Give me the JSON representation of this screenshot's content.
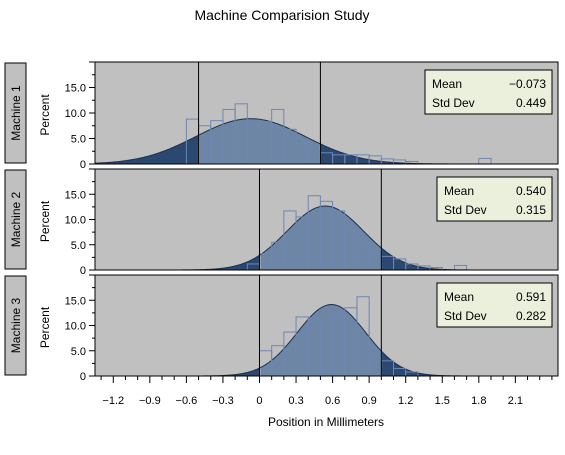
{
  "chart_data": {
    "type": "histogram",
    "title": "Machine Comparision Study",
    "xlabel": "Position in Millimeters",
    "ylabel": "Percent",
    "xlim": [
      -1.35,
      2.45
    ],
    "ylim": [
      0,
      20
    ],
    "x_ticks": [
      -1.2,
      -0.9,
      -0.6,
      -0.3,
      0,
      0.3,
      0.6,
      0.9,
      1.2,
      1.5,
      1.8,
      2.1
    ],
    "x_tick_labels": [
      "−1.2",
      "−0.9",
      "−0.6",
      "−0.3",
      "0",
      "0.3",
      "0.6",
      "0.9",
      "1.2",
      "1.5",
      "1.8",
      "2.1"
    ],
    "y_ticks": [
      0,
      5,
      10,
      15
    ],
    "y_tick_labels": [
      "0",
      "5.0",
      "10.0",
      "15.0"
    ],
    "grid": false,
    "panel_background": "#c0c0c0",
    "curve_inner_color": "#6d86a6",
    "curve_tail_color": "#2b4870",
    "bar_edge_color": "#6f86b2",
    "inset_background": "#eaf0dc",
    "stats_labels": [
      "Mean",
      "Std Dev"
    ],
    "panels": [
      {
        "name": "Machine 1",
        "mean": -0.073,
        "std": 0.449,
        "mean_text": "−0.073",
        "std_text": "0.449",
        "ref_lines": [
          -0.5,
          0.5
        ],
        "bins": [
          {
            "x0": -0.6,
            "x1": -0.5,
            "y": 8.8
          },
          {
            "x0": -0.5,
            "x1": -0.4,
            "y": 7.5
          },
          {
            "x0": -0.4,
            "x1": -0.3,
            "y": 8.5
          },
          {
            "x0": -0.3,
            "x1": -0.2,
            "y": 10.7
          },
          {
            "x0": -0.2,
            "x1": -0.1,
            "y": 11.8
          },
          {
            "x0": -0.1,
            "x1": 0.0,
            "y": 8.6
          },
          {
            "x0": 0.0,
            "x1": 0.1,
            "y": 8.3
          },
          {
            "x0": 0.1,
            "x1": 0.2,
            "y": 10.7
          },
          {
            "x0": 0.2,
            "x1": 0.3,
            "y": 6.8
          },
          {
            "x0": 0.3,
            "x1": 0.4,
            "y": 4.1
          },
          {
            "x0": 0.4,
            "x1": 0.5,
            "y": 2.5
          },
          {
            "x0": 0.5,
            "x1": 0.6,
            "y": 2.2
          },
          {
            "x0": 0.6,
            "x1": 0.7,
            "y": 1.8
          },
          {
            "x0": 0.7,
            "x1": 0.8,
            "y": 1.8
          },
          {
            "x0": 0.8,
            "x1": 0.9,
            "y": 1.8
          },
          {
            "x0": 0.9,
            "x1": 1.0,
            "y": 1.6
          },
          {
            "x0": 1.0,
            "x1": 1.1,
            "y": 1.0
          },
          {
            "x0": 1.1,
            "x1": 1.2,
            "y": 0.8
          },
          {
            "x0": 1.2,
            "x1": 1.3,
            "y": 0.5
          },
          {
            "x0": 1.8,
            "x1": 1.9,
            "y": 1.1
          }
        ]
      },
      {
        "name": "Machine 2",
        "mean": 0.54,
        "std": 0.315,
        "mean_text": "0.540",
        "std_text": "0.315",
        "ref_lines": [
          0,
          1
        ],
        "bins": [
          {
            "x0": -0.1,
            "x1": 0.0,
            "y": 1.2
          },
          {
            "x0": 0.0,
            "x1": 0.1,
            "y": 3.2
          },
          {
            "x0": 0.1,
            "x1": 0.2,
            "y": 5.5
          },
          {
            "x0": 0.2,
            "x1": 0.3,
            "y": 11.7
          },
          {
            "x0": 0.3,
            "x1": 0.4,
            "y": 10.5
          },
          {
            "x0": 0.4,
            "x1": 0.5,
            "y": 14.7
          },
          {
            "x0": 0.5,
            "x1": 0.6,
            "y": 13.6
          },
          {
            "x0": 0.6,
            "x1": 0.7,
            "y": 11.7
          },
          {
            "x0": 0.7,
            "x1": 0.8,
            "y": 7.5
          },
          {
            "x0": 0.8,
            "x1": 0.9,
            "y": 5.0
          },
          {
            "x0": 0.9,
            "x1": 1.0,
            "y": 3.6
          },
          {
            "x0": 1.0,
            "x1": 1.1,
            "y": 2.7
          },
          {
            "x0": 1.1,
            "x1": 1.2,
            "y": 2.2
          },
          {
            "x0": 1.2,
            "x1": 1.3,
            "y": 1.2
          },
          {
            "x0": 1.3,
            "x1": 1.4,
            "y": 0.8
          },
          {
            "x0": 1.4,
            "x1": 1.5,
            "y": 0.5
          },
          {
            "x0": 1.6,
            "x1": 1.7,
            "y": 0.9
          }
        ]
      },
      {
        "name": "Machine 3",
        "mean": 0.591,
        "std": 0.282,
        "mean_text": "0.591",
        "std_text": "0.282",
        "ref_lines": [
          0,
          1
        ],
        "bins": [
          {
            "x0": 0.0,
            "x1": 0.1,
            "y": 5.0
          },
          {
            "x0": 0.1,
            "x1": 0.2,
            "y": 6.0
          },
          {
            "x0": 0.2,
            "x1": 0.3,
            "y": 8.7
          },
          {
            "x0": 0.3,
            "x1": 0.4,
            "y": 11.7
          },
          {
            "x0": 0.4,
            "x1": 0.5,
            "y": 11.5
          },
          {
            "x0": 0.5,
            "x1": 0.6,
            "y": 10.7
          },
          {
            "x0": 0.6,
            "x1": 0.7,
            "y": 12.0
          },
          {
            "x0": 0.7,
            "x1": 0.8,
            "y": 13.5
          },
          {
            "x0": 0.8,
            "x1": 0.9,
            "y": 15.7
          },
          {
            "x0": 0.9,
            "x1": 1.0,
            "y": 4.3
          },
          {
            "x0": 1.0,
            "x1": 1.1,
            "y": 3.0
          },
          {
            "x0": 1.1,
            "x1": 1.2,
            "y": 1.5
          },
          {
            "x0": 1.2,
            "x1": 1.3,
            "y": 0.8
          }
        ]
      }
    ]
  }
}
